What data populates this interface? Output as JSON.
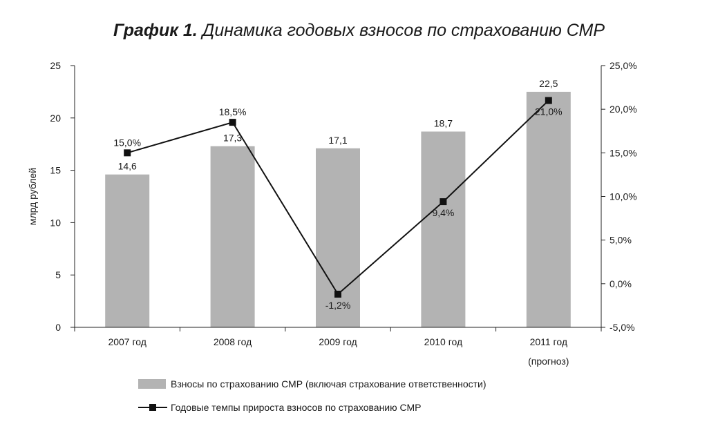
{
  "title": {
    "bold": "График 1.",
    "rest": "Динамика годовых взносов по страхованию СМР"
  },
  "chart_data": {
    "type": "bar",
    "categories": [
      [
        "2007 год"
      ],
      [
        "2008 год"
      ],
      [
        "2009 год"
      ],
      [
        "2010 год"
      ],
      [
        "2011 год",
        "(прогноз)"
      ]
    ],
    "ylabel": "млрд рублей",
    "ylim": [
      0,
      25
    ],
    "yticks": [
      "0",
      "5",
      "10",
      "15",
      "20",
      "25"
    ],
    "y2lim": [
      -5,
      25
    ],
    "y2ticks": [
      "-5,0%",
      "0,0%",
      "5,0%",
      "10,0%",
      "15,0%",
      "20,0%",
      "25,0%"
    ],
    "grid": false,
    "legend_position": "bottom",
    "series": [
      {
        "name": "Взносы по страхованию СМР (включая страхование ответственности)",
        "type": "bar",
        "axis": "left",
        "color": "#b3b3b3",
        "values": [
          14.6,
          17.3,
          17.1,
          18.7,
          22.5
        ],
        "labels": [
          "14,6",
          "17,3",
          "17,1",
          "18,7",
          "22,5"
        ]
      },
      {
        "name": "Годовые темпы прироста взносов по страхованию СМР",
        "type": "line",
        "axis": "right",
        "color": "#111111",
        "values": [
          15.0,
          18.5,
          -1.2,
          9.4,
          21.0
        ],
        "labels": [
          "15,0%",
          "18,5%",
          "-1,2%",
          "9,4%",
          "21,0%"
        ]
      }
    ]
  }
}
